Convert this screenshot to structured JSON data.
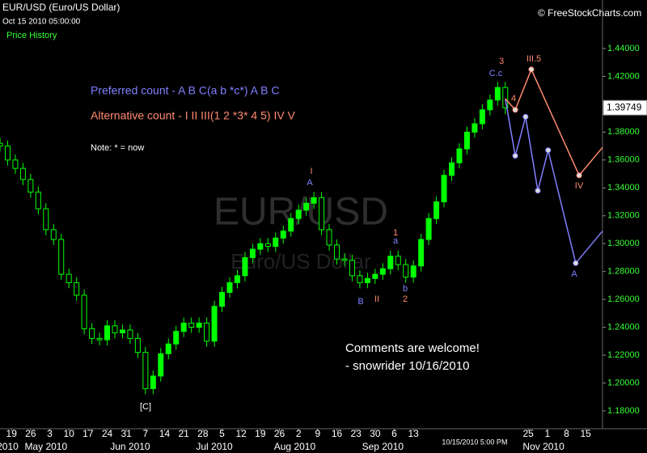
{
  "chart_data": {
    "type": "candlestick",
    "title": "EUR/USD (Euro/US Dollar)",
    "subtitle": "Oct 15 2010 05:00:00",
    "panel_label": "Price History",
    "source": "© FreeStockCharts.com",
    "watermark": "EUR/USD",
    "watermark_subtitle": "Euro/US Dollar",
    "color": "#00ff00",
    "x": [
      0,
      2,
      4,
      6,
      8,
      10,
      12,
      14,
      16,
      18,
      20,
      22,
      24,
      26,
      28,
      30,
      32,
      34,
      36,
      38,
      40,
      42,
      44,
      46,
      48,
      50,
      52,
      54,
      56,
      58,
      60,
      62,
      64,
      66,
      68,
      70,
      72,
      74,
      76,
      78,
      80,
      82,
      84,
      86,
      88,
      90,
      92,
      94,
      96,
      98,
      100,
      102,
      104,
      106,
      108,
      110,
      112,
      114,
      116,
      118,
      120,
      122,
      124,
      126,
      128,
      130,
      132
    ],
    "open": [
      1.372,
      1.37,
      1.36,
      1.354,
      1.346,
      1.337,
      1.325,
      1.31,
      1.303,
      1.278,
      1.272,
      1.263,
      1.239,
      1.232,
      1.231,
      1.241,
      1.236,
      1.238,
      1.232,
      1.222,
      1.196,
      1.205,
      1.221,
      1.228,
      1.237,
      1.243,
      1.24,
      1.243,
      1.23,
      1.255,
      1.265,
      1.272,
      1.277,
      1.29,
      1.296,
      1.3,
      1.298,
      1.304,
      1.309,
      1.318,
      1.324,
      1.329,
      1.333,
      1.31,
      1.299,
      1.289,
      1.288,
      1.277,
      1.272,
      1.275,
      1.278,
      1.282,
      1.291,
      1.285,
      1.276,
      1.284,
      1.303,
      1.318,
      1.33,
      1.349,
      1.358,
      1.368,
      1.38,
      1.386,
      1.396,
      1.403,
      1.412
    ],
    "high": [
      1.376,
      1.374,
      1.364,
      1.358,
      1.35,
      1.341,
      1.329,
      1.314,
      1.307,
      1.282,
      1.276,
      1.267,
      1.243,
      1.236,
      1.245,
      1.245,
      1.242,
      1.242,
      1.236,
      1.226,
      1.209,
      1.225,
      1.232,
      1.241,
      1.247,
      1.247,
      1.247,
      1.247,
      1.259,
      1.269,
      1.276,
      1.281,
      1.294,
      1.3,
      1.304,
      1.304,
      1.308,
      1.313,
      1.322,
      1.328,
      1.333,
      1.337,
      1.337,
      1.314,
      1.303,
      1.293,
      1.292,
      1.281,
      1.279,
      1.282,
      1.286,
      1.295,
      1.295,
      1.289,
      1.288,
      1.307,
      1.322,
      1.334,
      1.353,
      1.362,
      1.372,
      1.384,
      1.39,
      1.4,
      1.407,
      1.416,
      1.416
    ],
    "low": [
      1.366,
      1.356,
      1.35,
      1.342,
      1.333,
      1.321,
      1.306,
      1.299,
      1.274,
      1.268,
      1.259,
      1.235,
      1.228,
      1.227,
      1.227,
      1.232,
      1.232,
      1.228,
      1.218,
      1.192,
      1.192,
      1.201,
      1.217,
      1.224,
      1.233,
      1.236,
      1.236,
      1.226,
      1.226,
      1.251,
      1.261,
      1.268,
      1.273,
      1.286,
      1.292,
      1.294,
      1.294,
      1.3,
      1.305,
      1.314,
      1.32,
      1.325,
      1.306,
      1.295,
      1.285,
      1.284,
      1.273,
      1.268,
      1.268,
      1.271,
      1.274,
      1.278,
      1.281,
      1.272,
      1.272,
      1.28,
      1.299,
      1.314,
      1.326,
      1.345,
      1.354,
      1.364,
      1.376,
      1.382,
      1.392,
      1.399,
      1.393
    ],
    "close": [
      1.37,
      1.36,
      1.354,
      1.346,
      1.337,
      1.325,
      1.31,
      1.303,
      1.278,
      1.272,
      1.263,
      1.239,
      1.232,
      1.231,
      1.241,
      1.236,
      1.238,
      1.232,
      1.222,
      1.196,
      1.205,
      1.221,
      1.228,
      1.237,
      1.243,
      1.24,
      1.243,
      1.23,
      1.255,
      1.265,
      1.272,
      1.277,
      1.29,
      1.296,
      1.3,
      1.298,
      1.304,
      1.309,
      1.318,
      1.324,
      1.329,
      1.333,
      1.31,
      1.299,
      1.289,
      1.288,
      1.277,
      1.272,
      1.275,
      1.278,
      1.282,
      1.291,
      1.285,
      1.276,
      1.284,
      1.303,
      1.318,
      1.33,
      1.349,
      1.358,
      1.368,
      1.38,
      1.386,
      1.396,
      1.403,
      1.412,
      1.39749
    ],
    "last_value": 1.39749,
    "xlim": [
      0,
      157.4
    ],
    "ylim": [
      1.1672,
      1.4748
    ],
    "yticks": [
      {
        "value": 1.18,
        "label": "1.18000"
      },
      {
        "value": 1.2,
        "label": "1.20000"
      },
      {
        "value": 1.22,
        "label": "1.22000"
      },
      {
        "value": 1.24,
        "label": "1.24000"
      },
      {
        "value": 1.26,
        "label": "1.26000"
      },
      {
        "value": 1.28,
        "label": "1.28000"
      },
      {
        "value": 1.3,
        "label": "1.30000"
      },
      {
        "value": 1.32,
        "label": "1.32000"
      },
      {
        "value": 1.34,
        "label": "1.34000"
      },
      {
        "value": 1.36,
        "label": "1.36000"
      },
      {
        "value": 1.38,
        "label": "1.38000"
      },
      {
        "value": 1.4,
        "label": "1.40000"
      },
      {
        "value": 1.42,
        "label": "1.42000"
      },
      {
        "value": 1.44,
        "label": "1.44000"
      }
    ],
    "xticks": [
      {
        "value": 3,
        "label": "19"
      },
      {
        "value": 8,
        "label": "26"
      },
      {
        "value": 13,
        "label": "3"
      },
      {
        "value": 18,
        "label": "10"
      },
      {
        "value": 23,
        "label": "17"
      },
      {
        "value": 28,
        "label": "24"
      },
      {
        "value": 33,
        "label": "31"
      },
      {
        "value": 38,
        "label": "7"
      },
      {
        "value": 43,
        "label": "14"
      },
      {
        "value": 48,
        "label": "21"
      },
      {
        "value": 53,
        "label": "28"
      },
      {
        "value": 58,
        "label": "5"
      },
      {
        "value": 63,
        "label": "12"
      },
      {
        "value": 68,
        "label": "19"
      },
      {
        "value": 73,
        "label": "26"
      },
      {
        "value": 78,
        "label": "2"
      },
      {
        "value": 83,
        "label": "9"
      },
      {
        "value": 88,
        "label": "16"
      },
      {
        "value": 93,
        "label": "23"
      },
      {
        "value": 98,
        "label": "30"
      },
      {
        "value": 103,
        "label": "6"
      },
      {
        "value": 108,
        "label": "13"
      },
      {
        "value": 138,
        "label": "25"
      },
      {
        "value": 143,
        "label": "1"
      },
      {
        "value": 148,
        "label": "8"
      },
      {
        "value": 153,
        "label": "15"
      }
    ],
    "month_ticks": [
      {
        "value": 2,
        "label": "2010"
      },
      {
        "value": 12,
        "label": "May 2010"
      },
      {
        "value": 34,
        "label": "Jun 2010"
      },
      {
        "value": 56,
        "label": "Jul 2010"
      },
      {
        "value": 77,
        "label": "Aug 2010"
      },
      {
        "value": 100,
        "label": "Sep 2010"
      },
      {
        "value": 142,
        "label": "Nov 2010"
      }
    ],
    "now_tick": {
      "value": 124,
      "label": "10/15/2010 5:00 PM"
    },
    "projections": [
      {
        "name": "Preferred count -  A B C(a b *c*) A B C",
        "color": "#8080ff",
        "x": [
          132,
          134.6,
          137.3,
          140.5,
          143.2,
          150.4,
          157.4
        ],
        "values": [
          1.404,
          1.363,
          1.391,
          1.338,
          1.367,
          1.286,
          1.309
        ]
      },
      {
        "name": "Alternative count -  I II III(1 2 *3* 4 5) IV V",
        "color": "#ff8a70",
        "x": [
          132,
          134.6,
          138.8,
          151.3,
          157.4
        ],
        "values": [
          1.404,
          1.396,
          1.425,
          1.349,
          1.369
        ]
      }
    ],
    "note": "Note:  * = now",
    "comment": "Comments are welcome!",
    "signature": "- snowrider  10/16/2010",
    "wave_labels": [
      {
        "text": "I",
        "color": "#ff8a70"
      },
      {
        "text": "A",
        "color": "#8080ff"
      },
      {
        "text": "[C]",
        "color": "#ffffff"
      },
      {
        "text": "B",
        "color": "#8080ff"
      },
      {
        "text": "II",
        "color": "#ff8a70"
      },
      {
        "text": "1",
        "color": "#ff8a70"
      },
      {
        "text": "a",
        "color": "#8080ff"
      },
      {
        "text": "b",
        "color": "#8080ff"
      },
      {
        "text": "2",
        "color": "#ff8a70"
      },
      {
        "text": "3",
        "color": "#ff8a70"
      },
      {
        "text": "C.c",
        "color": "#8080ff"
      },
      {
        "text": "III.5",
        "color": "#ff8a70"
      },
      {
        "text": "4",
        "color": "#ff8a70"
      },
      {
        "text": "IV",
        "color": "#ff8a70"
      },
      {
        "text": "A",
        "color": "#8080ff"
      }
    ]
  }
}
